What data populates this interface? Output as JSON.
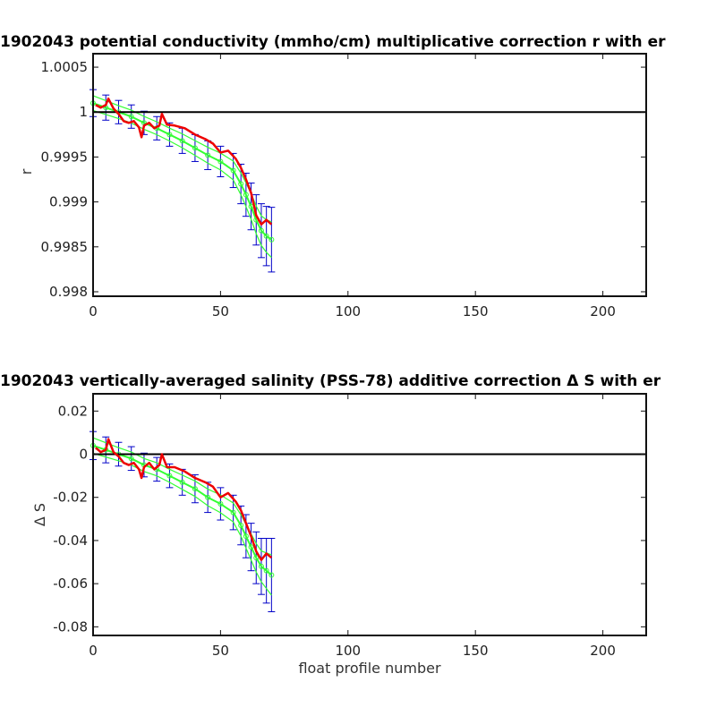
{
  "chart_data": [
    {
      "type": "line",
      "title": "1902043 potential conductivity (mmho/cm) multiplicative correction r with er",
      "xlabel": "",
      "ylabel": "r",
      "xlim": [
        0,
        217
      ],
      "ylim": [
        0.99795,
        1.00065
      ],
      "xticks": [
        0,
        50,
        100,
        150,
        200
      ],
      "xtick_labels": [
        "0",
        "50",
        "100",
        "150",
        "200"
      ],
      "yticks": [
        0.998,
        0.9985,
        0.999,
        0.9995,
        1.0,
        1.0005
      ],
      "ytick_labels": [
        "0.998",
        "0.9985",
        "0.999",
        "0.9995",
        "1",
        "1.0005"
      ],
      "reference_line": 1.0,
      "grid": false,
      "colors": {
        "errorbar": "#0000c8",
        "fit": "#33ff33",
        "correction": "#ee0000",
        "reference": "#000000"
      },
      "series": [
        {
          "role": "correction",
          "x": [
            1,
            3,
            5,
            6,
            8,
            10,
            12,
            14,
            16,
            18,
            19,
            20,
            22,
            24,
            26,
            27,
            29,
            32,
            36,
            40,
            44,
            47,
            50,
            53,
            56,
            58,
            60,
            62,
            64,
            66,
            68,
            70
          ],
          "values": [
            1.00008,
            1.00005,
            1.00008,
            1.00015,
            1.00004,
            0.99998,
            0.9999,
            0.99988,
            0.9999,
            0.99983,
            0.99972,
            0.99985,
            0.99988,
            0.99982,
            0.99985,
            0.99998,
            0.99986,
            0.99985,
            0.99982,
            0.99975,
            0.9997,
            0.99965,
            0.99955,
            0.99957,
            0.99948,
            0.99938,
            0.99925,
            0.9991,
            0.99885,
            0.99875,
            0.9988,
            0.99875
          ]
        },
        {
          "role": "fit",
          "x": [
            0,
            5,
            10,
            15,
            20,
            25,
            30,
            35,
            40,
            45,
            50,
            55,
            58,
            60,
            62,
            64,
            66,
            68,
            70
          ],
          "values": [
            1.0001,
            1.00005,
            1.0,
            0.99995,
            0.99988,
            0.99982,
            0.99975,
            0.99968,
            0.9996,
            0.99952,
            0.99945,
            0.99935,
            0.9992,
            0.99908,
            0.99895,
            0.9988,
            0.99868,
            0.99862,
            0.99858
          ],
          "error": [
            0.00015,
            0.00014,
            0.00013,
            0.00013,
            0.00013,
            0.00013,
            0.00013,
            0.00014,
            0.00015,
            0.00016,
            0.00017,
            0.00019,
            0.00022,
            0.00024,
            0.00026,
            0.00028,
            0.0003,
            0.00033,
            0.00036
          ]
        }
      ]
    },
    {
      "type": "line",
      "title": "1902043 vertically-averaged salinity (PSS-78) additive correction Δ S with er",
      "xlabel": "float profile number",
      "ylabel": "Δ S",
      "xlim": [
        0,
        217
      ],
      "ylim": [
        -0.084,
        0.028
      ],
      "xticks": [
        0,
        50,
        100,
        150,
        200
      ],
      "xtick_labels": [
        "0",
        "50",
        "100",
        "150",
        "200"
      ],
      "yticks": [
        -0.08,
        -0.06,
        -0.04,
        -0.02,
        0,
        0.02
      ],
      "ytick_labels": [
        "-0.08",
        "-0.06",
        "-0.04",
        "-0.02",
        "0",
        "0.02"
      ],
      "reference_line": 0,
      "grid": false,
      "colors": {
        "errorbar": "#0000c8",
        "fit": "#33ff33",
        "correction": "#ee0000",
        "reference": "#000000"
      },
      "series": [
        {
          "role": "correction",
          "x": [
            1,
            3,
            5,
            6,
            8,
            10,
            12,
            14,
            16,
            18,
            19,
            20,
            22,
            24,
            26,
            27,
            29,
            32,
            36,
            40,
            44,
            47,
            50,
            53,
            56,
            58,
            60,
            62,
            64,
            66,
            68,
            70
          ],
          "values": [
            0.003,
            0.001,
            0.002,
            0.007,
            0.001,
            -0.001,
            -0.004,
            -0.005,
            -0.004,
            -0.007,
            -0.011,
            -0.006,
            -0.004,
            -0.007,
            -0.005,
            0.0,
            -0.006,
            -0.006,
            -0.008,
            -0.011,
            -0.013,
            -0.015,
            -0.02,
            -0.018,
            -0.022,
            -0.026,
            -0.032,
            -0.038,
            -0.045,
            -0.049,
            -0.046,
            -0.048
          ]
        },
        {
          "role": "fit",
          "x": [
            0,
            5,
            10,
            15,
            20,
            25,
            30,
            35,
            40,
            45,
            50,
            55,
            58,
            60,
            62,
            64,
            66,
            68,
            70
          ],
          "values": [
            0.004,
            0.002,
            0.0,
            -0.002,
            -0.005,
            -0.007,
            -0.01,
            -0.013,
            -0.016,
            -0.02,
            -0.023,
            -0.027,
            -0.033,
            -0.038,
            -0.043,
            -0.048,
            -0.052,
            -0.054,
            -0.056
          ],
          "error": [
            0.0065,
            0.006,
            0.0055,
            0.0055,
            0.0055,
            0.0055,
            0.0055,
            0.006,
            0.0065,
            0.007,
            0.0075,
            0.008,
            0.009,
            0.01,
            0.011,
            0.012,
            0.013,
            0.015,
            0.017
          ]
        }
      ]
    }
  ]
}
